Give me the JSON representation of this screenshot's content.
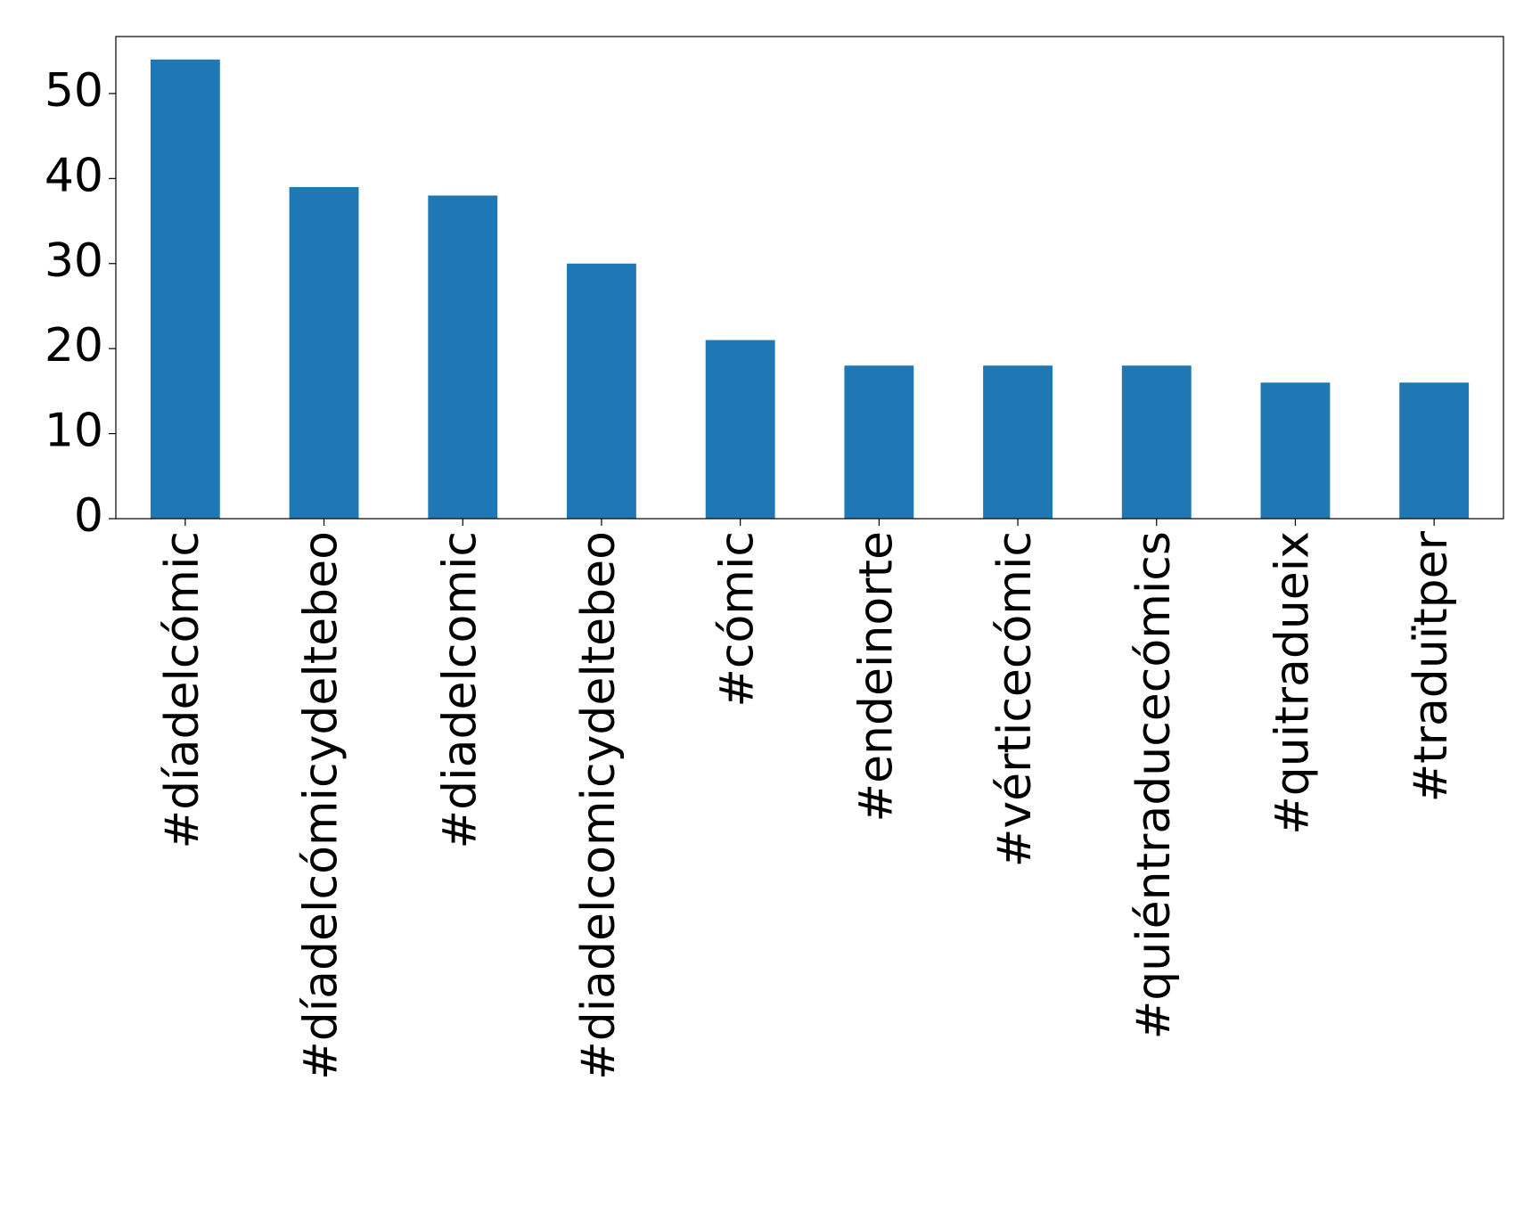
{
  "chart_data": {
    "type": "bar",
    "categories": [
      "#díadelcómic",
      "#díadelcómicydeltebeo",
      "#diadelcomic",
      "#diadelcomicydeltebeo",
      "#cómic",
      "#endeinorte",
      "#vérticecómic",
      "#quiéntraducecómics",
      "#quitradueix",
      "#traduïtper"
    ],
    "values": [
      54,
      39,
      38,
      30,
      21,
      18,
      18,
      18,
      16,
      16
    ],
    "color": "#1f77b4",
    "ylim": [
      0,
      56.7
    ],
    "yticks": [
      0,
      10,
      20,
      30,
      40,
      50
    ],
    "grid": false
  }
}
